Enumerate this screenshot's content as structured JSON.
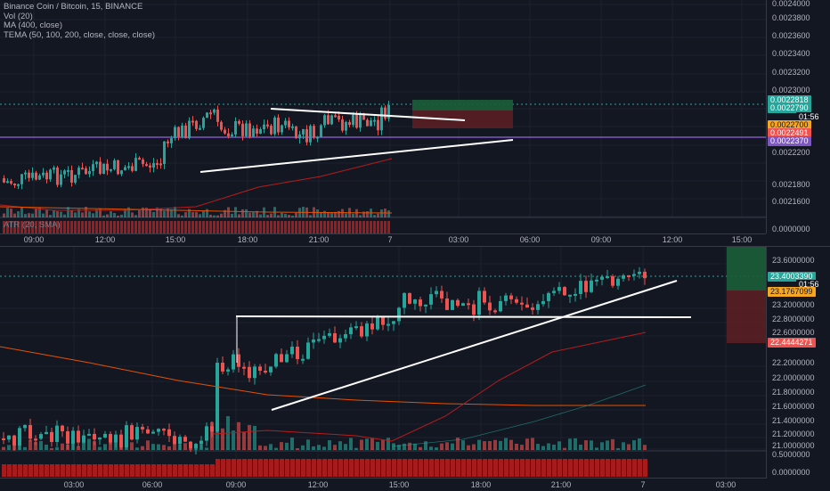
{
  "top": {
    "symbol_line": "Binance Coin / Bitcoin, 15, BINANCE",
    "indicators": [
      "Vol (20)",
      "MA (400, close)",
      "TEMA (50, 100, 200, close, close, close)"
    ],
    "atr_label": "ATR (20, SMA)",
    "y_ticks": [
      "0.0024000",
      "0.0023800",
      "0.0023600",
      "0.0023400",
      "0.0023200",
      "0.0023000",
      "0.0022200",
      "0.0021800",
      "0.0021600"
    ],
    "atr_ticks": [
      "0.0000000"
    ],
    "tags": {
      "target": "0.0022818",
      "price": "0.0022790",
      "countdown": "01:56",
      "entry": "0.0022700",
      "ma": "0.0022491",
      "stop": "0.0022370"
    },
    "x_labels": [
      "09:00",
      "12:00",
      "15:00",
      "18:00",
      "21:00",
      "7",
      "03:00",
      "06:00",
      "09:00",
      "12:00",
      "15:00"
    ]
  },
  "bottom": {
    "y_ticks": [
      "23.6000000",
      "23.2000000",
      "22.8000000",
      "22.6000000",
      "22.2000000",
      "22.0000000",
      "21.8000000",
      "21.6000000",
      "21.4000000",
      "21.2000000",
      "21.0000000"
    ],
    "atr_ticks": [
      "0.5000000",
      "0.0000000"
    ],
    "tags": {
      "price": "23.4003390",
      "countdown": "01:56",
      "entry": "23.1767099",
      "stop": "22.4444271"
    },
    "x_labels": [
      "03:00",
      "06:00",
      "09:00",
      "12:00",
      "15:00",
      "18:00",
      "21:00",
      "7",
      "03:00"
    ]
  },
  "colors": {
    "background": "#131722",
    "bull": "#26a69a",
    "bear": "#ef5350",
    "horizontal_line": "#7e57c2",
    "trendline": "#ffffff",
    "ma": "#e65100",
    "atr": "#b71c1c",
    "profit_zone": "#1b5e3a",
    "loss_zone": "#5a1f24"
  }
}
